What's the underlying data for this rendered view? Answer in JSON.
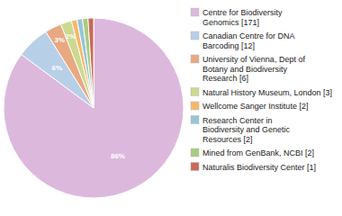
{
  "chart_data": {
    "type": "pie",
    "categories": [
      "Centre for Biodiversity\nGenomics [171]",
      "Canadian Centre for DNA\nBarcoding [12]",
      "University of Vienna, Dept of\nBotany and Biodiversity\nResearch [6]",
      "Natural History Museum, London [3]",
      "Wellcome Sanger Institute [2]",
      "Research Center in\nBiodiversity and Genetic\nResources [2]",
      "Mined from GenBank, NCBI [2]",
      "Naturalis Biodiversity Center [1]"
    ],
    "values": [
      86,
      6,
      3,
      2,
      1,
      1,
      1,
      1
    ],
    "value_labels": [
      "86%",
      "6%",
      "3%",
      "2%",
      null,
      null,
      null,
      null
    ],
    "data_labels": true,
    "colors": [
      "#ddb8dd",
      "#b8cfe8",
      "#e8a882",
      "#ccd98e",
      "#f5b86a",
      "#98c4d8",
      "#a8cc82",
      "#cc6855"
    ],
    "legend": "right"
  }
}
